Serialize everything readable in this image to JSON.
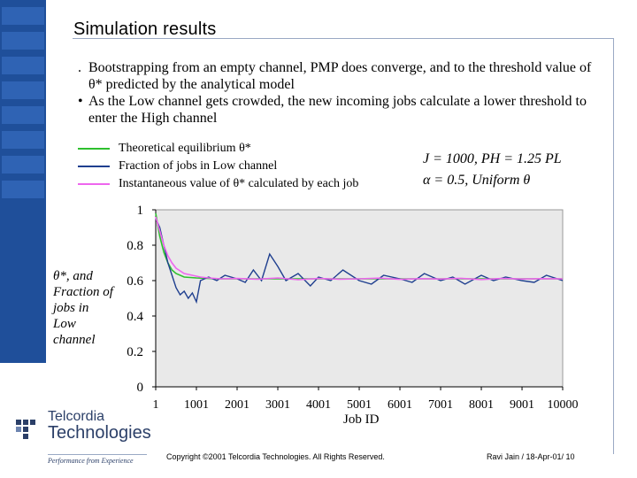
{
  "slide": {
    "title": "Simulation results",
    "bullets": [
      {
        "mark": ".",
        "text": "Bootstrapping from an empty channel, PMP does converge, and to the threshold value of θ* predicted by the analytical model"
      },
      {
        "mark": "•",
        "text": "As the Low channel gets crowded, the new incoming jobs calculate a lower threshold to enter the High channel"
      }
    ],
    "params": {
      "line1": "J = 1000, PH = 1.25 PL",
      "line2": "α = 0.5, Uniform θ"
    },
    "footer": {
      "copyright": "Copyright ©2001 Telcordia Technologies. All Rights Reserved.",
      "author": "Ravi Jain / 18-Apr-01/ 10"
    },
    "logo": {
      "line1": "Telcordia",
      "line2": "Technologies",
      "tagline": "Performance from Experience"
    }
  },
  "colors": {
    "theoretical": "#2ec02e",
    "fraction": "#1f3f8f",
    "instantaneous": "#ee66ee",
    "plot_bg": "#e9e9e9",
    "brand": "#1f4f9a"
  },
  "chart_data": {
    "type": "line",
    "title": "",
    "xlabel": "Job ID",
    "ylabel": "θ*, and Fraction of jobs in Low channel",
    "x_ticks": [
      "1",
      "1001",
      "2001",
      "3001",
      "4001",
      "5001",
      "6001",
      "7001",
      "8001",
      "9001",
      "10000"
    ],
    "y_ticks": [
      "0",
      "0.2",
      "0.4",
      "0.6",
      "0.8",
      "1"
    ],
    "xlim": [
      1,
      10000
    ],
    "ylim": [
      0,
      1
    ],
    "grid": false,
    "legend": "top-left",
    "series": [
      {
        "name": "Theoretical equilibrium θ*",
        "x": [
          1,
          100,
          200,
          300,
          400,
          500,
          700,
          1000,
          1500,
          2000,
          4000,
          6000,
          8000,
          10000
        ],
        "y": [
          0.98,
          0.85,
          0.76,
          0.7,
          0.66,
          0.64,
          0.62,
          0.615,
          0.61,
          0.61,
          0.61,
          0.61,
          0.61,
          0.61
        ]
      },
      {
        "name": "Fraction of jobs in Low channel",
        "x": [
          1,
          100,
          200,
          300,
          400,
          500,
          600,
          700,
          800,
          900,
          1000,
          1100,
          1200,
          1300,
          1500,
          1700,
          2000,
          2200,
          2400,
          2600,
          2800,
          3000,
          3200,
          3500,
          3800,
          4000,
          4300,
          4600,
          5000,
          5300,
          5600,
          6000,
          6300,
          6600,
          7000,
          7300,
          7600,
          8000,
          8300,
          8600,
          9000,
          9300,
          9600,
          10000
        ],
        "y": [
          0.95,
          0.9,
          0.8,
          0.7,
          0.63,
          0.56,
          0.52,
          0.54,
          0.5,
          0.53,
          0.48,
          0.6,
          0.61,
          0.62,
          0.6,
          0.63,
          0.61,
          0.59,
          0.66,
          0.6,
          0.75,
          0.68,
          0.6,
          0.64,
          0.57,
          0.62,
          0.6,
          0.66,
          0.6,
          0.58,
          0.63,
          0.61,
          0.59,
          0.64,
          0.6,
          0.62,
          0.58,
          0.63,
          0.6,
          0.62,
          0.6,
          0.59,
          0.63,
          0.6
        ]
      },
      {
        "name": "Instantaneous value of θ* calculated by each job",
        "x": [
          1,
          100,
          200,
          300,
          400,
          500,
          700,
          900,
          1100,
          1300,
          1600,
          2000,
          2500,
          3000,
          3500,
          4000,
          4500,
          5000,
          5500,
          6000,
          6500,
          7000,
          7500,
          8000,
          8500,
          9000,
          9500,
          10000
        ],
        "y": [
          0.96,
          0.88,
          0.8,
          0.74,
          0.7,
          0.67,
          0.64,
          0.63,
          0.62,
          0.615,
          0.61,
          0.612,
          0.608,
          0.615,
          0.605,
          0.612,
          0.608,
          0.61,
          0.614,
          0.607,
          0.611,
          0.609,
          0.613,
          0.606,
          0.612,
          0.609,
          0.611,
          0.61
        ]
      }
    ]
  }
}
